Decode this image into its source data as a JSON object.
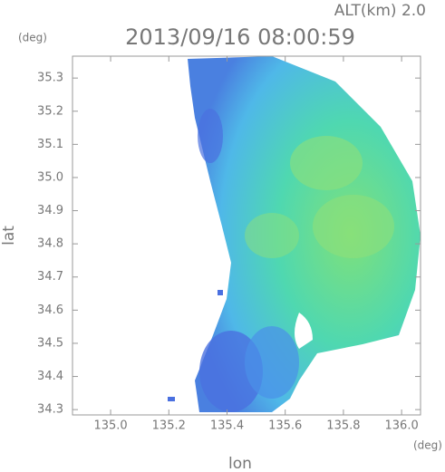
{
  "header": {
    "altitude": "ALT(km) 2.0",
    "timestamp": "2013/09/16 08:00:59",
    "y_unit": "(deg)",
    "x_unit": "(deg)"
  },
  "axes": {
    "xlabel": "lon",
    "ylabel": "lat",
    "xlim": [
      134.869,
      136.065
    ],
    "ylim": [
      34.284,
      35.366
    ],
    "xticks": [
      {
        "value": 135.0,
        "label": "135.0"
      },
      135.2,
      135.4,
      135.6,
      135.8,
      {
        "value": 136.0,
        "label": "136.0"
      }
    ],
    "yticks": [
      34.3,
      34.4,
      34.5,
      34.6,
      34.7,
      34.8,
      34.9,
      {
        "value": 35.0,
        "label": "35.0"
      },
      35.1,
      35.2,
      35.3
    ]
  }
}
